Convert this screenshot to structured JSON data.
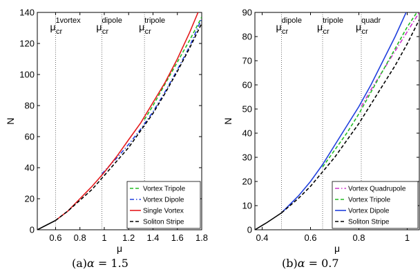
{
  "figure": {
    "captions": [
      {
        "label": "(a)",
        "symbol": "α",
        "equals": " = ",
        "value": "1.5"
      },
      {
        "label": "(b)",
        "symbol": "α",
        "equals": " = ",
        "value": "0.7"
      }
    ]
  },
  "chart_data": [
    {
      "type": "line",
      "panel": "a",
      "xlabel": "μ",
      "ylabel": "N",
      "xlim": [
        0.45,
        1.8
      ],
      "ylim": [
        0,
        140
      ],
      "xticks": [
        0.6,
        0.8,
        1,
        1.2,
        1.4,
        1.6,
        1.8
      ],
      "xticklabels": [
        "0.6",
        "0.8",
        "1",
        "1.2",
        "1.4",
        "1.6",
        "1.8"
      ],
      "yticks": [
        0,
        20,
        40,
        60,
        80,
        100,
        120,
        140
      ],
      "yticklabels": [
        "0",
        "20",
        "40",
        "60",
        "80",
        "100",
        "120",
        "140"
      ],
      "grid": false,
      "legend_position": "bottom-right",
      "thresholds": [
        {
          "x": 0.6,
          "base": "μ",
          "sub": "cr",
          "sup": "1vortex"
        },
        {
          "x": 0.98,
          "base": "μ",
          "sub": "cr",
          "sup": "dipole"
        },
        {
          "x": 1.33,
          "base": "μ",
          "sub": "cr",
          "sup": "tripole"
        }
      ],
      "series": [
        {
          "name": "Vortex Tripole",
          "color": "#22bb22",
          "dash": "dashed",
          "x": [
            1.33,
            1.4,
            1.5,
            1.6,
            1.7,
            1.8
          ],
          "y": [
            71,
            80,
            94,
            108,
            122,
            137
          ]
        },
        {
          "name": "Vortex Dipole",
          "color": "#1f3fdd",
          "dash": "dashdot",
          "x": [
            0.98,
            1.1,
            1.2,
            1.3,
            1.4,
            1.5,
            1.6,
            1.7,
            1.8
          ],
          "y": [
            36,
            46,
            55,
            65,
            76,
            89,
            103,
            118,
            136
          ]
        },
        {
          "name": "Single Vortex",
          "color": "#e41a1c",
          "dash": "solid",
          "x": [
            0.6,
            0.7,
            0.8,
            0.9,
            1.0,
            1.1,
            1.2,
            1.3,
            1.4,
            1.5,
            1.6,
            1.7,
            1.77
          ],
          "y": [
            6,
            12,
            20,
            28,
            37,
            47,
            58,
            69,
            82,
            95,
            110,
            127,
            140
          ]
        },
        {
          "name": "Soliton Stripe",
          "color": "#000000",
          "dash": "dashed",
          "x": [
            0.6,
            0.7,
            0.8,
            0.9,
            1.0,
            1.1,
            1.2,
            1.3,
            1.4,
            1.5,
            1.6,
            1.7,
            1.8
          ],
          "y": [
            6,
            12,
            19,
            26,
            35,
            44,
            53,
            64,
            75,
            88,
            102,
            117,
            133
          ]
        },
        {
          "name": "",
          "color": "#000000",
          "dash": "solid",
          "x": [
            0.45,
            0.5,
            0.55,
            0.6
          ],
          "y": [
            0,
            2,
            4,
            6
          ]
        }
      ]
    },
    {
      "type": "line",
      "panel": "b",
      "xlabel": "μ",
      "ylabel": "N",
      "xlim": [
        0.37,
        1.05
      ],
      "ylim": [
        0,
        90
      ],
      "xticks": [
        0.4,
        0.6,
        0.8,
        1
      ],
      "xticklabels": [
        "0.4",
        "0.6",
        "0.8",
        "1"
      ],
      "yticks": [
        0,
        10,
        20,
        30,
        40,
        50,
        60,
        70,
        80,
        90
      ],
      "yticklabels": [
        "0",
        "10",
        "20",
        "30",
        "40",
        "50",
        "60",
        "70",
        "80",
        "90"
      ],
      "grid": false,
      "legend_position": "bottom-right",
      "thresholds": [
        {
          "x": 0.48,
          "base": "μ",
          "sub": "cr",
          "sup": "dipole"
        },
        {
          "x": 0.65,
          "base": "μ",
          "sub": "cr",
          "sup": "tripole"
        },
        {
          "x": 0.81,
          "base": "μ",
          "sub": "cr",
          "sup": "quadr"
        }
      ],
      "series": [
        {
          "name": "Vortex Quadrupole",
          "color": "#cc33cc",
          "dash": "dashdot",
          "x": [
            0.81,
            0.85,
            0.9,
            0.95,
            1.0,
            1.05
          ],
          "y": [
            51,
            58,
            66,
            74,
            82,
            90
          ]
        },
        {
          "name": "Vortex Tripole",
          "color": "#22bb22",
          "dash": "dashed",
          "x": [
            0.65,
            0.7,
            0.75,
            0.8,
            0.85,
            0.9,
            0.95,
            1.0,
            1.04
          ],
          "y": [
            26,
            33,
            40,
            48,
            57,
            66,
            75,
            84,
            90
          ]
        },
        {
          "name": "Vortex Dipole",
          "color": "#1f3fdd",
          "dash": "solid",
          "x": [
            0.48,
            0.55,
            0.6,
            0.65,
            0.7,
            0.75,
            0.8,
            0.85,
            0.9,
            0.95,
            1.0
          ],
          "y": [
            7,
            14,
            20,
            27,
            35,
            43,
            51,
            60,
            70,
            80,
            91
          ]
        },
        {
          "name": "Soliton Stripe",
          "color": "#000000",
          "dash": "dashed",
          "x": [
            0.48,
            0.55,
            0.6,
            0.65,
            0.7,
            0.75,
            0.8,
            0.85,
            0.9,
            0.95,
            1.0,
            1.05
          ],
          "y": [
            7,
            13,
            18,
            24,
            30,
            37,
            44,
            52,
            60,
            68,
            77,
            87
          ]
        },
        {
          "name": "",
          "color": "#000000",
          "dash": "solid",
          "x": [
            0.37,
            0.42,
            0.48
          ],
          "y": [
            0,
            3,
            7
          ]
        }
      ]
    }
  ]
}
